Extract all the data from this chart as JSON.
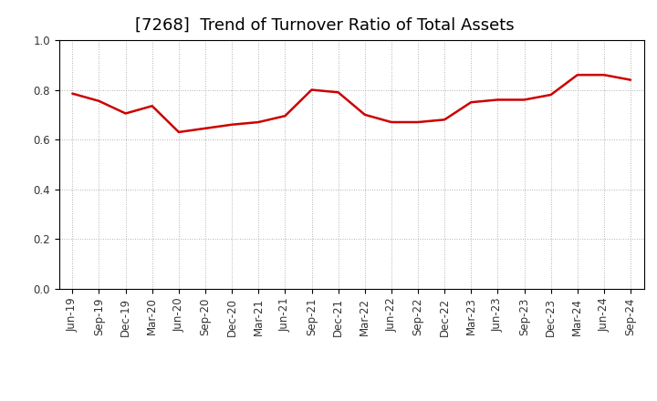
{
  "title": "[7268]  Trend of Turnover Ratio of Total Assets",
  "x_labels": [
    "Jun-19",
    "Sep-19",
    "Dec-19",
    "Mar-20",
    "Jun-20",
    "Sep-20",
    "Dec-20",
    "Mar-21",
    "Jun-21",
    "Sep-21",
    "Dec-21",
    "Mar-22",
    "Jun-22",
    "Sep-22",
    "Dec-22",
    "Mar-23",
    "Jun-23",
    "Sep-23",
    "Dec-23",
    "Mar-24",
    "Jun-24",
    "Sep-24"
  ],
  "values": [
    0.785,
    0.755,
    0.705,
    0.735,
    0.63,
    0.645,
    0.66,
    0.67,
    0.695,
    0.8,
    0.79,
    0.7,
    0.67,
    0.67,
    0.68,
    0.75,
    0.76,
    0.76,
    0.78,
    0.86,
    0.86,
    0.84
  ],
  "line_color": "#cc0000",
  "line_width": 1.8,
  "ylim": [
    0.0,
    1.0
  ],
  "yticks": [
    0.0,
    0.2,
    0.4,
    0.6,
    0.8,
    1.0
  ],
  "background_color": "#ffffff",
  "plot_bg_color": "#ffffff",
  "grid_color": "#999999",
  "title_fontsize": 13,
  "tick_fontsize": 8.5,
  "title_color": "#000000"
}
